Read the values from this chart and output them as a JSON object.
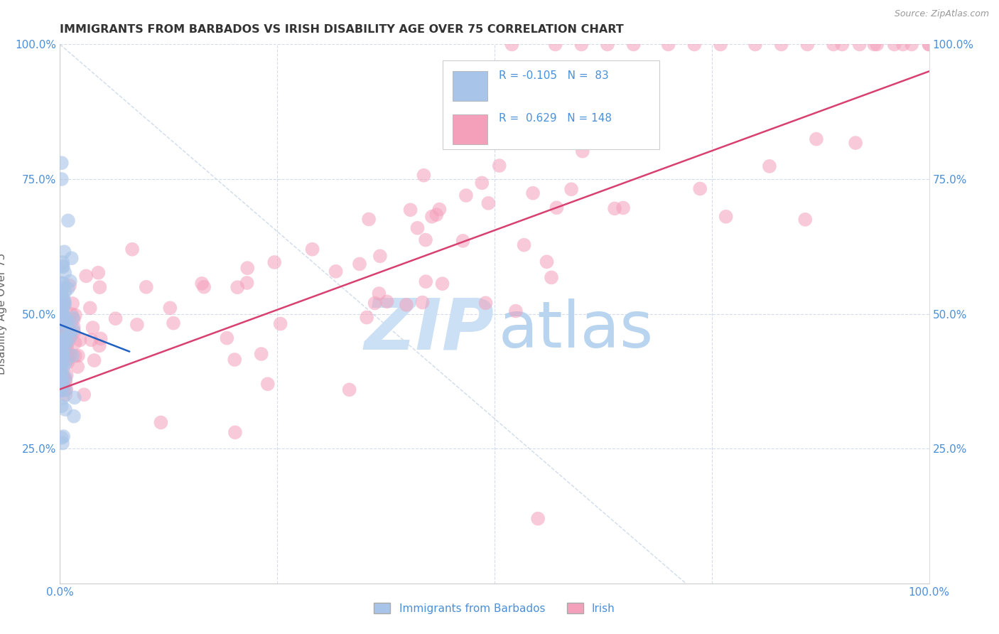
{
  "title": "IMMIGRANTS FROM BARBADOS VS IRISH DISABILITY AGE OVER 75 CORRELATION CHART",
  "source": "Source: ZipAtlas.com",
  "ylabel": "Disability Age Over 75",
  "legend_label_blue": "Immigrants from Barbados",
  "legend_label_pink": "Irish",
  "blue_color": "#a8c4e8",
  "pink_color": "#f4a0bb",
  "blue_line_color": "#2060c0",
  "pink_line_color": "#d84070",
  "diag_line_color": "#b0c4de",
  "axis_label_color": "#4a90d9",
  "watermark_zip_color": "#cce0f5",
  "watermark_atlas_color": "#b8d4ee",
  "background_color": "#ffffff",
  "grid_color": "#d0d8e8",
  "title_color": "#333333",
  "source_color": "#999999"
}
